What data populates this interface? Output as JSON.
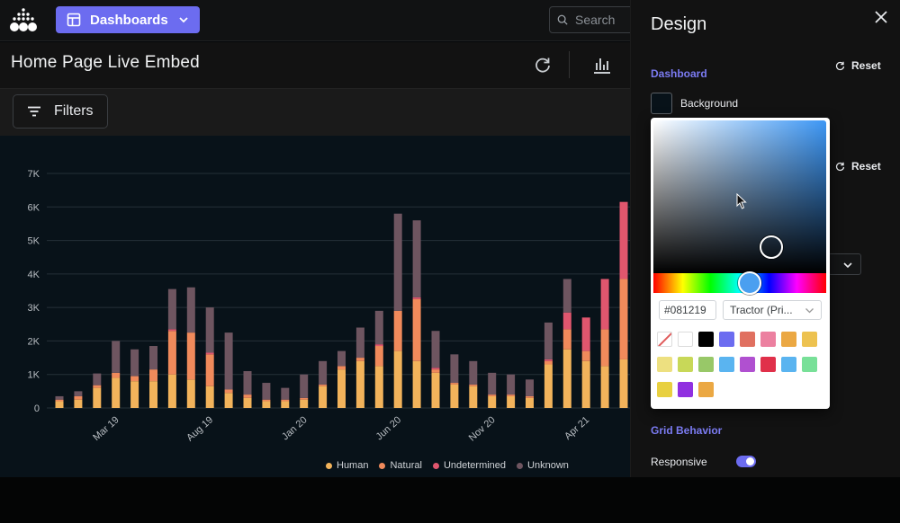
{
  "nav": {
    "dashboards_label": "Dashboards",
    "search_placeholder": "Search"
  },
  "page": {
    "title": "Home Page Live Embed"
  },
  "filters": {
    "label": "Filters"
  },
  "chart_data": {
    "type": "bar",
    "stacked": true,
    "y_ticks": [
      "0",
      "1K",
      "2K",
      "3K",
      "4K",
      "5K",
      "6K",
      "7K"
    ],
    "ylim": [
      0,
      7000
    ],
    "x_tick_labels": [
      "Mar 19",
      "Aug 19",
      "Jan 20",
      "Jun 20",
      "Nov 20",
      "Apr 21"
    ],
    "x_tick_indices": [
      3,
      8,
      13,
      18,
      23,
      28
    ],
    "legend_position": "bottom-center",
    "grid": true,
    "series": [
      {
        "name": "Human",
        "color": "#f2b35b",
        "values": [
          200,
          250,
          600,
          900,
          800,
          800,
          1000,
          850,
          650,
          450,
          300,
          200,
          200,
          250,
          650,
          1150,
          1400,
          1250,
          1700,
          1400,
          1050,
          700,
          650,
          350,
          350,
          300,
          1300,
          1750,
          1400,
          1250,
          1450
        ]
      },
      {
        "name": "Natural",
        "color": "#f08a5b",
        "values": [
          50,
          100,
          80,
          150,
          150,
          350,
          1300,
          1400,
          950,
          100,
          100,
          50,
          50,
          50,
          50,
          100,
          100,
          600,
          1200,
          1850,
          100,
          50,
          50,
          50,
          50,
          50,
          100,
          600,
          300,
          1100,
          2400
        ]
      },
      {
        "name": "Undetermined",
        "color": "#e0566e",
        "values": [
          0,
          0,
          0,
          0,
          0,
          0,
          50,
          0,
          50,
          0,
          0,
          0,
          0,
          0,
          0,
          0,
          0,
          50,
          0,
          50,
          50,
          0,
          0,
          0,
          0,
          0,
          50,
          500,
          1000,
          1500,
          2300
        ]
      },
      {
        "name": "Unknown",
        "color": "#6e5560",
        "values": [
          100,
          150,
          350,
          950,
          800,
          700,
          1200,
          1350,
          1350,
          1700,
          700,
          500,
          350,
          700,
          700,
          450,
          900,
          1000,
          2900,
          2300,
          1100,
          850,
          700,
          650,
          600,
          500,
          1100,
          1000,
          0,
          0,
          0
        ]
      }
    ]
  },
  "panel": {
    "title": "Design",
    "dashboard_section": "Dashboard",
    "reset_label": "Reset",
    "reset_label_2": "Reset",
    "background_label": "Background",
    "grid_behavior_section": "Grid Behavior",
    "responsive_label": "Responsive",
    "responsive_on": true
  },
  "picker": {
    "hex_value": "#081219",
    "palette_label": "Tractor (Pri...",
    "swatches": [
      "none",
      "#ffffff",
      "#000000",
      "#6c6cf0",
      "#e07060",
      "#ec80a0",
      "#eba843",
      "#edc250",
      "#ede080",
      "#c8d858",
      "#98c868",
      "#5ab4f0",
      "#b050d0",
      "#e0304a",
      "#5ab4f0",
      "#78e098",
      "#e8d040",
      "#9030e0",
      "#eba843"
    ]
  },
  "colors": {
    "accent": "#6c6cf0",
    "chart_bg": "#081219"
  }
}
